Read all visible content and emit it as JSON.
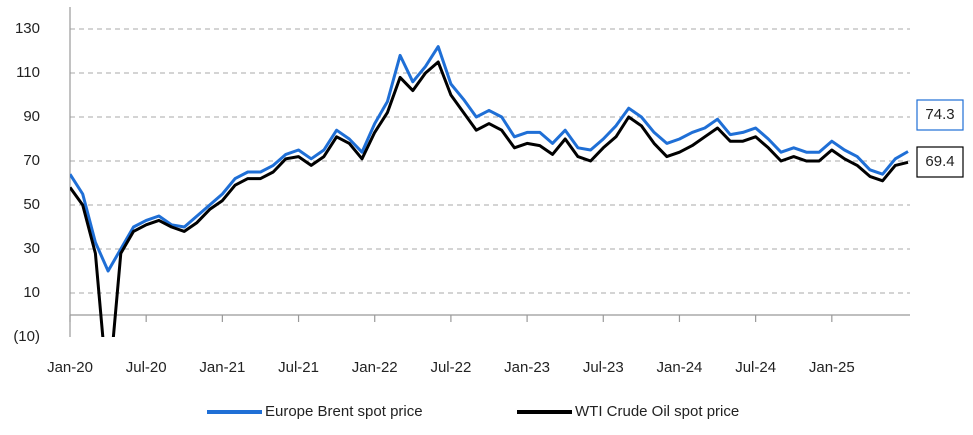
{
  "chart_data": {
    "type": "line",
    "x": [
      "Jan-20",
      null,
      null,
      null,
      null,
      null,
      "Jul-20",
      null,
      null,
      null,
      null,
      null,
      "Jan-21",
      null,
      null,
      null,
      null,
      null,
      "Jul-21",
      null,
      null,
      null,
      null,
      null,
      "Jan-22",
      null,
      null,
      null,
      null,
      null,
      "Jul-22",
      null,
      null,
      null,
      null,
      null,
      "Jan-23",
      null,
      null,
      null,
      null,
      null,
      "Jul-23",
      null,
      null,
      null,
      null,
      null,
      "Jan-24",
      null,
      null,
      null,
      null,
      null,
      "Jul-24",
      null,
      null,
      null,
      null,
      null,
      "Jan-25",
      null,
      null,
      null,
      null,
      null,
      null
    ],
    "series": [
      {
        "name": "Europe Brent spot price",
        "color": "#1f6fd6",
        "end_label": "74.3",
        "values": [
          64,
          55,
          33,
          20,
          30,
          40,
          43,
          45,
          41,
          40,
          45,
          50,
          55,
          62,
          65,
          65,
          68,
          73,
          75,
          71,
          75,
          84,
          80,
          74,
          87,
          97,
          118,
          106,
          113,
          122,
          105,
          98,
          90,
          93,
          90,
          81,
          83,
          83,
          78,
          84,
          76,
          75,
          80,
          86,
          94,
          90,
          83,
          78,
          80,
          83,
          85,
          89,
          82,
          83,
          85,
          80,
          74,
          76,
          74,
          74,
          79,
          75,
          72,
          66,
          64,
          71,
          74.3
        ]
      },
      {
        "name": "WTI Crude Oil spot price",
        "color": "#000000",
        "end_label": "69.4",
        "values": [
          58,
          50,
          28,
          -37,
          28,
          38,
          41,
          43,
          40,
          38,
          42,
          48,
          52,
          59,
          62,
          62,
          65,
          71,
          72,
          68,
          72,
          81,
          78,
          71,
          83,
          92,
          108,
          102,
          110,
          115,
          100,
          92,
          84,
          87,
          84,
          76,
          78,
          77,
          73,
          80,
          72,
          70,
          76,
          81,
          90,
          86,
          78,
          72,
          74,
          77,
          81,
          85,
          79,
          79,
          81,
          76,
          70,
          72,
          70,
          70,
          75,
          71,
          68,
          63,
          61,
          68,
          69.4
        ]
      }
    ],
    "ylim": [
      -10,
      140
    ],
    "yticks": [
      {
        "value": -10,
        "label": "(10)"
      },
      10,
      30,
      50,
      70,
      90,
      110,
      130
    ],
    "grid": true,
    "legend": "bottom"
  }
}
